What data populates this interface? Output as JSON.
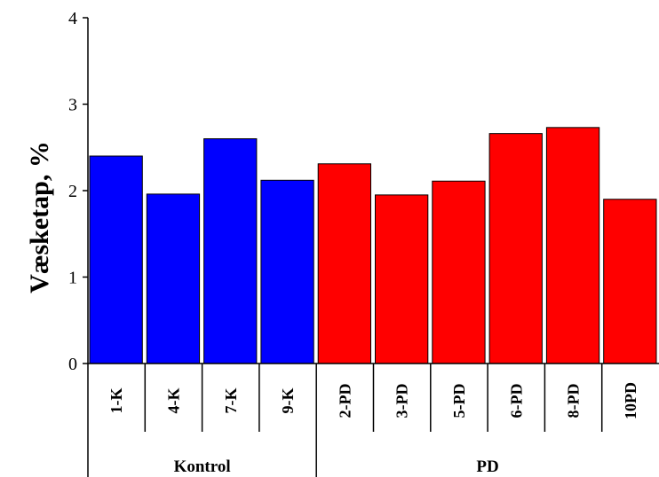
{
  "chart_data": {
    "type": "bar",
    "title": "",
    "xlabel": "",
    "ylabel": "Væsketap, %",
    "ylim": [
      0,
      4
    ],
    "yticks": [
      "0",
      "1",
      "2",
      "3",
      "4"
    ],
    "grid": false,
    "categories": [
      "1-K",
      "4-K",
      "7-K",
      "9-K",
      "2-PD",
      "3-PD",
      "5-PD",
      "6-PD",
      "8-PD",
      "10PD"
    ],
    "values": [
      2.4,
      1.96,
      2.6,
      2.12,
      2.31,
      1.95,
      2.11,
      2.66,
      2.73,
      1.9
    ],
    "groups": [
      {
        "label": "Kontrol",
        "start": 0,
        "end": 3,
        "color": "#0000ff"
      },
      {
        "label": "PD",
        "start": 4,
        "end": 9,
        "color": "#ff0000"
      }
    ]
  }
}
